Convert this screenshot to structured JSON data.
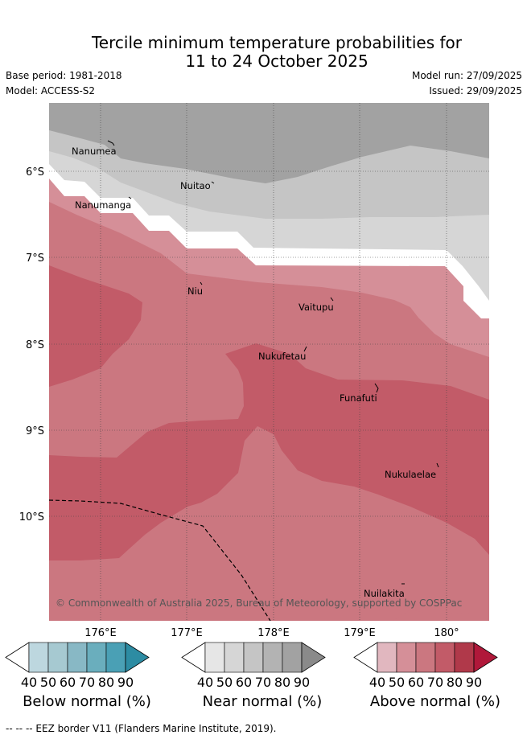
{
  "title_line1": "Tercile minimum temperature probabilities for",
  "title_line2": "11 to 24 October 2025",
  "base_period": "Base period: 1981-2018",
  "model": "Model: ACCESS-S2",
  "model_run": "Model run: 27/09/2025",
  "issued": "Issued: 29/09/2025",
  "copyright": "© Commonwealth of Australia 2025, Bureau of Meteorology, supported by COSPPac",
  "x_ticks": [
    "176°E",
    "177°E",
    "178°E",
    "179°E",
    "180°"
  ],
  "y_ticks": [
    "6°S",
    "7°S",
    "8°S",
    "9°S",
    "10°S"
  ],
  "places": [
    "Nanumea",
    "Nuitao",
    "Nanumanga",
    "Niu",
    "Vaitupu",
    "Nukufetau",
    "Funafuti",
    "Nukulaelae",
    "Nuilakita"
  ],
  "colorbars": [
    {
      "label": "Below normal (%)",
      "ticks": [
        "40",
        "50",
        "60",
        "70",
        "80",
        "90"
      ],
      "colors": [
        "#bdd7df",
        "#a6c9d1",
        "#88b8c5",
        "#6aaebd",
        "#4aa0b5",
        "#2d8ca3"
      ]
    },
    {
      "label": "Near normal (%)",
      "ticks": [
        "40",
        "50",
        "60",
        "70",
        "80",
        "90"
      ],
      "colors": [
        "#e6e6e6",
        "#d6d6d6",
        "#c5c5c5",
        "#b3b3b3",
        "#a2a2a2",
        "#8a8a8a"
      ]
    },
    {
      "label": "Above normal (%)",
      "ticks": [
        "40",
        "50",
        "60",
        "70",
        "80",
        "90"
      ],
      "colors": [
        "#e1b7bf",
        "#d58f98",
        "#cb7780",
        "#c25b68",
        "#b0394a",
        "#b0183a"
      ]
    }
  ],
  "footer": "--  --  -- EEZ border V11 (Flanders Marine Institute, 2019)."
}
